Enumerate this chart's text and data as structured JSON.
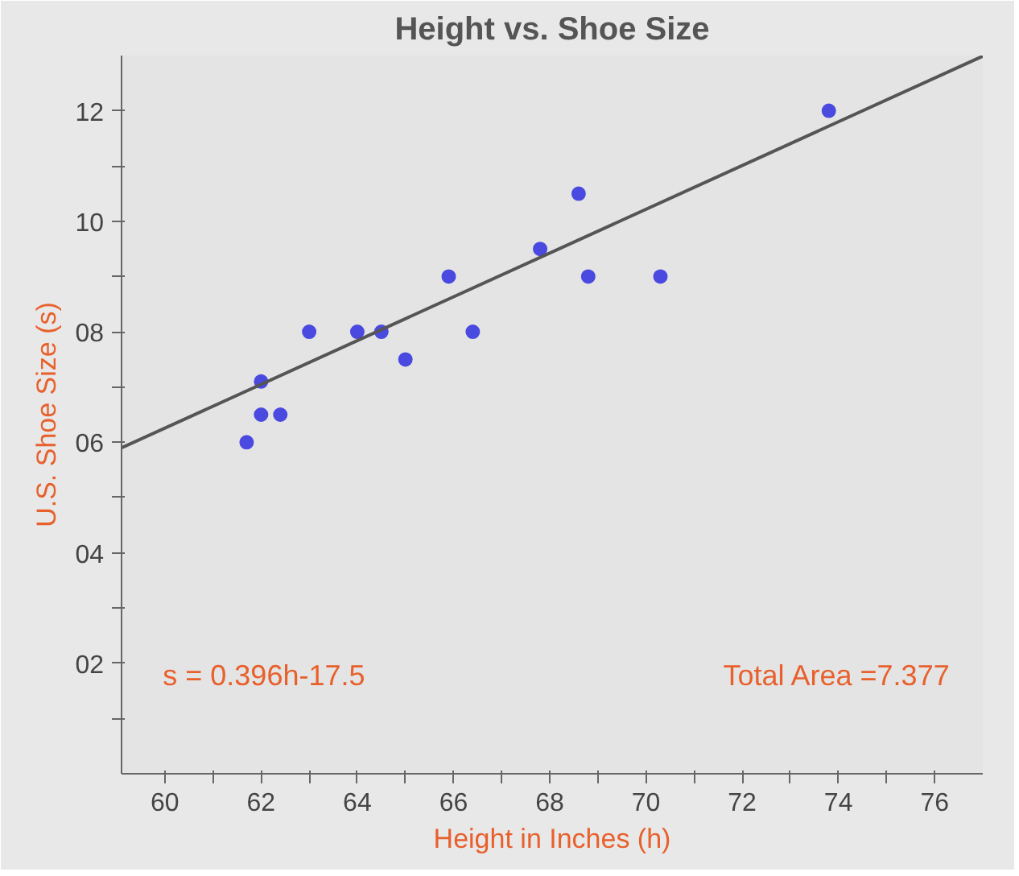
{
  "chart_data": {
    "type": "scatter",
    "title": "Height vs. Shoe Size",
    "xlabel": "Height in Inches (h)",
    "ylabel": "U.S. Shoe Size (s)",
    "xlim": [
      59.1,
      77
    ],
    "ylim": [
      0,
      13
    ],
    "xticks": [
      60,
      {
        "value": 61,
        "label": null
      },
      62,
      {
        "value": 63,
        "label": null
      },
      64,
      {
        "value": 65,
        "label": null
      },
      66,
      {
        "value": 67,
        "label": null
      },
      68,
      {
        "value": 69,
        "label": null
      },
      70,
      {
        "value": 71,
        "label": null
      },
      72,
      {
        "value": 73,
        "label": null
      },
      74,
      {
        "value": 75,
        "label": null
      },
      76
    ],
    "yticks": [
      {
        "value": 1,
        "label": null
      },
      {
        "value": 2,
        "label": "02"
      },
      {
        "value": 3,
        "label": null
      },
      {
        "value": 4,
        "label": "04"
      },
      {
        "value": 5,
        "label": null
      },
      {
        "value": 6,
        "label": "06"
      },
      {
        "value": 7,
        "label": null
      },
      {
        "value": 8,
        "label": "08"
      },
      {
        "value": 9,
        "label": null
      },
      {
        "value": 10,
        "label": "10"
      },
      {
        "value": 11,
        "label": null
      },
      {
        "value": 12,
        "label": "12"
      }
    ],
    "series": [
      {
        "marker": "circle",
        "color": "#4a4ae0",
        "x": [
          61.7,
          62,
          62,
          62.4,
          63,
          64,
          64.5,
          65,
          65.9,
          66.4,
          67.8,
          68.6,
          68.8,
          70.3,
          73.8
        ],
        "values": [
          6.0,
          7.1,
          6.5,
          6.5,
          8.0,
          8.0,
          8.0,
          7.5,
          9.0,
          8.0,
          9.5,
          10.5,
          9.0,
          9.0,
          12.0
        ]
      },
      {
        "type": "line",
        "marker": "none",
        "color": "#555555",
        "x": [
          59.1,
          77
        ],
        "values": [
          5.9,
          12.99
        ]
      }
    ],
    "annotations": [
      "s = 0.396h-17.5",
      "Total Area =7.377"
    ]
  }
}
